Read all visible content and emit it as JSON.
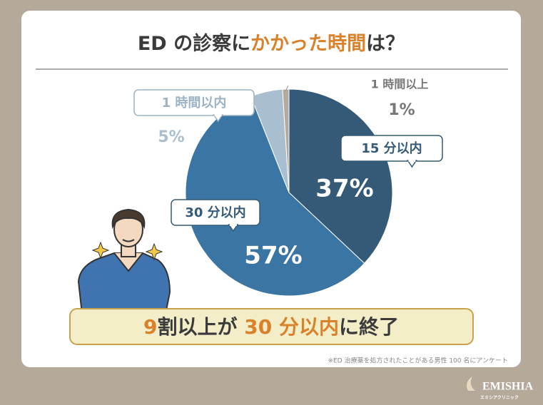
{
  "chart_data": {
    "type": "pie",
    "title": [
      {
        "text": "ED の診察に",
        "color": "#3b3b3b"
      },
      {
        "text": "かかった時間",
        "color": "#d9822b"
      },
      {
        "text": "は？",
        "color": "#3b3b3b"
      }
    ],
    "categories": [
      "15 分以内",
      "30 分以内",
      "1 時間以内",
      "1 時間以上"
    ],
    "values": [
      37,
      57,
      5,
      1
    ],
    "value_labels": [
      "37%",
      "57%",
      "5%",
      "1%"
    ],
    "colors": [
      "#345a77",
      "#3a75a3",
      "#a9bfd0",
      "#b3ab9f"
    ],
    "conclusion": [
      {
        "text": "9",
        "color": "#d9822b"
      },
      {
        "text": "割以上が ",
        "color": "#3b3b3b"
      },
      {
        "text": "30 分以内",
        "color": "#d9822b"
      },
      {
        "text": "に終了",
        "color": "#3b3b3b"
      }
    ],
    "footnote": "※ED 治療薬を処方されたことがある男性 100 名にアンケート",
    "brand": "EMISHIA",
    "brand_sub": "エミシアクリニック"
  }
}
